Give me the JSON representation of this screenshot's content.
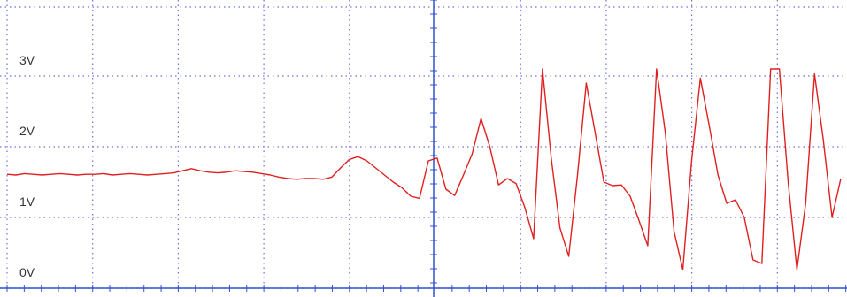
{
  "chart_data": {
    "type": "line",
    "yticks": [
      {
        "value": 0,
        "label": "0V"
      },
      {
        "value": 1,
        "label": "1V"
      },
      {
        "value": 2,
        "label": "2V"
      },
      {
        "value": 3,
        "label": "3V"
      }
    ],
    "ylim": [
      0,
      4
    ],
    "grid": true,
    "color": "#e02020",
    "values": [
      1.61,
      1.6,
      1.62,
      1.61,
      1.6,
      1.61,
      1.62,
      1.61,
      1.6,
      1.61,
      1.61,
      1.62,
      1.6,
      1.61,
      1.62,
      1.61,
      1.6,
      1.61,
      1.62,
      1.63,
      1.66,
      1.69,
      1.66,
      1.64,
      1.63,
      1.64,
      1.66,
      1.65,
      1.64,
      1.62,
      1.6,
      1.57,
      1.55,
      1.54,
      1.55,
      1.55,
      1.54,
      1.57,
      1.7,
      1.82,
      1.86,
      1.8,
      1.7,
      1.6,
      1.5,
      1.42,
      1.3,
      1.27,
      1.8,
      1.84,
      1.4,
      1.31,
      1.6,
      1.9,
      2.4,
      2.0,
      1.46,
      1.55,
      1.48,
      1.14,
      0.7,
      3.1,
      1.84,
      0.85,
      0.45,
      1.6,
      2.9,
      2.2,
      1.5,
      1.45,
      1.46,
      1.3,
      0.96,
      0.6,
      3.1,
      2.2,
      0.8,
      0.26,
      1.8,
      2.97,
      2.3,
      1.6,
      1.2,
      1.25,
      1.0,
      0.4,
      0.35,
      3.1,
      3.1,
      1.5,
      0.26,
      1.2,
      3.03,
      2.1,
      1.0,
      1.55
    ]
  }
}
